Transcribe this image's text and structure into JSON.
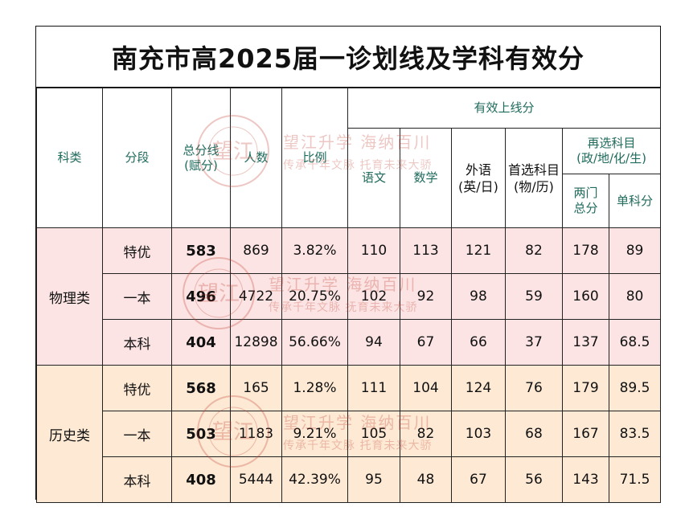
{
  "title": "南充市高2025届一诊划线及学科有效分",
  "headers": {
    "category": "科类",
    "tier": "分段",
    "total_line_1": "总分线",
    "total_line_2": "(赋分)",
    "count": "人数",
    "ratio": "比例",
    "effective": "有效上线分",
    "chinese": "语文",
    "math": "数学",
    "foreign_1": "外语",
    "foreign_2": "(英/日)",
    "first_choice_1": "首选科目",
    "first_choice_2": "(物/历)",
    "reselect_1": "再选科目",
    "reselect_2": "(政/地/化/生)",
    "two_total_1": "两门",
    "two_total_2": "总分",
    "single": "单科分"
  },
  "groups": [
    {
      "name": "物理类",
      "rows": [
        {
          "tier": "特优",
          "score": "583",
          "count": "869",
          "ratio": "3.82%",
          "chinese": "110",
          "math": "113",
          "foreign": "121",
          "first": "82",
          "two": "178",
          "single": "89"
        },
        {
          "tier": "一本",
          "score": "496",
          "count": "4722",
          "ratio": "20.75%",
          "chinese": "102",
          "math": "92",
          "foreign": "98",
          "first": "59",
          "two": "160",
          "single": "80"
        },
        {
          "tier": "本科",
          "score": "404",
          "count": "12898",
          "ratio": "56.66%",
          "chinese": "94",
          "math": "67",
          "foreign": "66",
          "first": "37",
          "two": "137",
          "single": "68.5"
        }
      ]
    },
    {
      "name": "历史类",
      "rows": [
        {
          "tier": "特优",
          "score": "568",
          "count": "165",
          "ratio": "1.28%",
          "chinese": "111",
          "math": "104",
          "foreign": "124",
          "first": "76",
          "two": "179",
          "single": "89.5"
        },
        {
          "tier": "一本",
          "score": "503",
          "count": "1183",
          "ratio": "9.21%",
          "chinese": "105",
          "math": "82",
          "foreign": "103",
          "first": "68",
          "two": "167",
          "single": "83.5"
        },
        {
          "tier": "本科",
          "score": "408",
          "count": "5444",
          "ratio": "42.39%",
          "chinese": "95",
          "math": "48",
          "foreign": "67",
          "first": "56",
          "two": "143",
          "single": "71.5"
        }
      ]
    }
  ],
  "watermark": {
    "line1": "望江升学 海纳百川",
    "line2_a": "传承千年文脉 托育未来大骄",
    "line2_b": "传承千年文脉 抚育未来大骄",
    "seal_char": "望江",
    "color": "#c0392b"
  }
}
